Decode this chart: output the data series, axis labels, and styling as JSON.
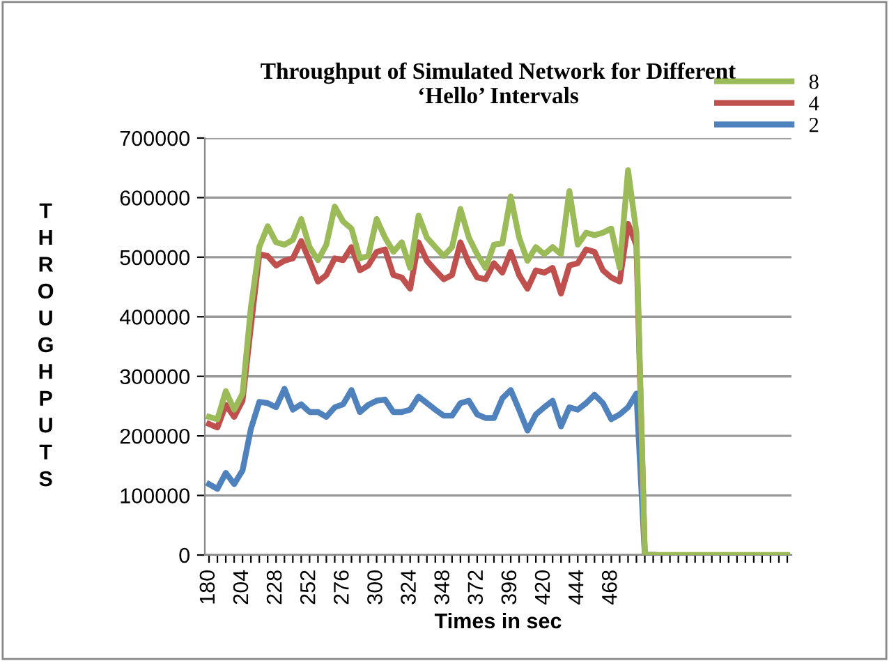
{
  "chart_data": {
    "type": "line",
    "title": "Throughput of Simulated Network for Different\n‘Hello’ Intervals",
    "xlabel": "Times in sec",
    "ylabel": "THROUGHPUTS",
    "categories": [
      "180",
      null,
      null,
      null,
      "204",
      null,
      null,
      null,
      "228",
      null,
      null,
      null,
      "252",
      null,
      null,
      null,
      "276",
      null,
      null,
      null,
      "300",
      null,
      null,
      null,
      "324",
      null,
      null,
      null,
      "348",
      null,
      null,
      null,
      "372",
      null,
      null,
      null,
      "396",
      null,
      null,
      null,
      "420",
      null,
      null,
      null,
      "444",
      null,
      null,
      null,
      "468",
      null,
      null,
      null,
      null,
      null,
      null,
      null,
      null,
      null,
      null,
      null,
      null,
      null,
      null,
      null,
      null,
      null,
      null,
      null,
      null,
      null
    ],
    "series": [
      {
        "name": "8",
        "color": "#9bbb59",
        "values": [
          232000,
          228000,
          275000,
          244000,
          271000,
          416000,
          517000,
          552000,
          525000,
          521000,
          529000,
          564000,
          517000,
          495000,
          521000,
          585000,
          560000,
          548000,
          498000,
          502000,
          564000,
          533000,
          509000,
          525000,
          482000,
          570000,
          533000,
          517000,
          502000,
          517000,
          581000,
          533000,
          505000,
          482000,
          521000,
          523000,
          602000,
          533000,
          494000,
          517000,
          505000,
          517000,
          505000,
          611000,
          521000,
          541000,
          537000,
          541000,
          548000,
          482000,
          646000,
          541000,
          0,
          0,
          0,
          0,
          0,
          0,
          0,
          0,
          0,
          0,
          0,
          0,
          0,
          0,
          0,
          0,
          0,
          0
        ]
      },
      {
        "name": "4",
        "color": "#c0504d",
        "values": [
          220000,
          214000,
          252000,
          232000,
          259000,
          384000,
          505000,
          502000,
          486000,
          494000,
          498000,
          527000,
          494000,
          459000,
          470000,
          498000,
          495000,
          517000,
          478000,
          486000,
          509000,
          513000,
          470000,
          466000,
          447000,
          525000,
          494000,
          478000,
          463000,
          470000,
          525000,
          490000,
          466000,
          463000,
          490000,
          474000,
          509000,
          470000,
          447000,
          478000,
          474000,
          482000,
          439000,
          486000,
          490000,
          513000,
          509000,
          478000,
          466000,
          459000,
          556000,
          520000,
          0,
          0,
          null,
          null,
          null,
          null,
          null,
          null,
          null,
          null,
          null,
          null,
          null,
          null,
          null,
          null,
          null,
          null
        ]
      },
      {
        "name": "2",
        "color": "#4f81bd",
        "values": [
          119000,
          111000,
          138000,
          119000,
          142000,
          212000,
          257000,
          255000,
          248000,
          279000,
          244000,
          253000,
          240000,
          240000,
          232000,
          248000,
          253000,
          277000,
          240000,
          252000,
          259000,
          261000,
          240000,
          240000,
          244000,
          266000,
          255000,
          244000,
          234000,
          234000,
          255000,
          259000,
          236000,
          230000,
          230000,
          263000,
          277000,
          244000,
          209000,
          236000,
          248000,
          259000,
          216000,
          248000,
          244000,
          255000,
          269000,
          255000,
          228000,
          236000,
          248000,
          271000,
          0,
          0,
          null,
          null,
          null,
          null,
          null,
          null,
          null,
          null,
          null,
          null,
          null,
          null,
          null,
          null,
          null,
          null
        ]
      }
    ],
    "ylim": [
      0,
      700000
    ],
    "yticks": [
      0,
      100000,
      200000,
      300000,
      400000,
      500000,
      600000,
      700000
    ],
    "grid": "y",
    "legend": "top right",
    "marker": "none",
    "line_style": "solid"
  }
}
